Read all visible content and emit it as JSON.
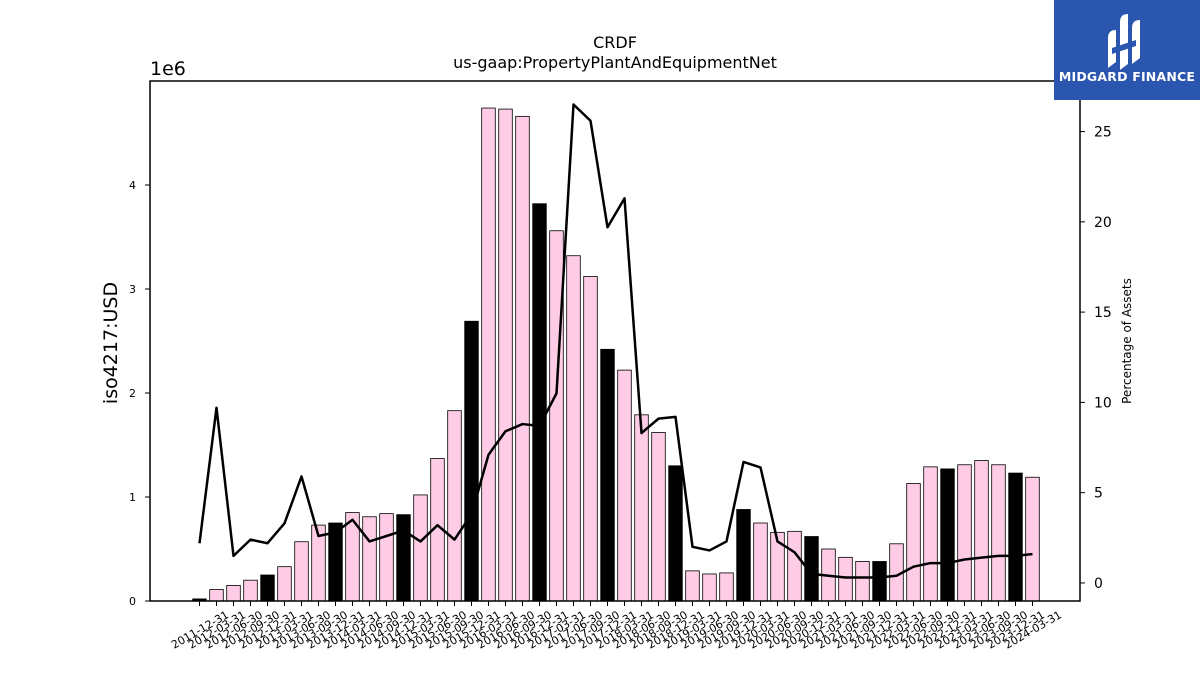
{
  "chart_data": {
    "type": "bar",
    "title": "CRDF",
    "subtitle": "us-gaap:PropertyPlantAndEquipmentNet",
    "ylabel": "iso4217:USD",
    "y_multiplier_label": "1e6",
    "y2label": "Percentage of Assets",
    "ylim": [
      0,
      5.0
    ],
    "y2lim": [
      -1,
      27.8
    ],
    "yticks": [
      "0",
      "1",
      "2",
      "3",
      "4"
    ],
    "y2ticks": [
      "0",
      "5",
      "10",
      "15",
      "20",
      "25"
    ],
    "grid": false,
    "colors": {
      "quarter_bar": "#ffcce6",
      "annual_bar": "#000000",
      "line": "#000000"
    },
    "categories": [
      "2011-12-31",
      "2012-03-31",
      "2012-06-30",
      "2012-09-30",
      "2012-12-31",
      "2013-03-31",
      "2013-06-30",
      "2013-09-30",
      "2013-12-31",
      "2014-03-31",
      "2014-06-30",
      "2014-09-30",
      "2014-12-31",
      "2015-03-31",
      "2015-06-30",
      "2015-09-30",
      "2015-12-31",
      "2016-03-31",
      "2016-06-30",
      "2016-09-30",
      "2016-12-31",
      "2017-03-31",
      "2017-06-30",
      "2017-09-30",
      "2017-12-31",
      "2018-03-31",
      "2018-06-30",
      "2018-09-30",
      "2018-12-31",
      "2019-03-31",
      "2019-06-30",
      "2019-09-30",
      "2019-12-31",
      "2020-03-31",
      "2020-06-30",
      "2020-09-30",
      "2020-12-31",
      "2021-03-31",
      "2021-06-30",
      "2021-09-30",
      "2021-12-31",
      "2022-03-31",
      "2022-06-30",
      "2022-09-30",
      "2022-12-31",
      "2023-03-31",
      "2023-06-30",
      "2023-09-30",
      "2023-12-31",
      "2024-03-31"
    ],
    "bar_values_millions": [
      0.02,
      0.11,
      0.15,
      0.2,
      0.25,
      0.33,
      0.57,
      0.73,
      0.75,
      0.85,
      0.81,
      0.84,
      0.83,
      1.02,
      1.37,
      1.83,
      2.69,
      4.74,
      4.73,
      4.66,
      3.82,
      3.56,
      3.32,
      3.12,
      2.42,
      2.22,
      1.79,
      1.62,
      1.3,
      0.29,
      0.26,
      0.27,
      0.88,
      0.75,
      0.66,
      0.67,
      0.62,
      0.5,
      0.42,
      0.38,
      0.38,
      0.55,
      1.13,
      1.29,
      1.27,
      1.31,
      1.35,
      1.31,
      1.23,
      1.19
    ],
    "is_annual": [
      true,
      false,
      false,
      false,
      true,
      false,
      false,
      false,
      true,
      false,
      false,
      false,
      true,
      false,
      false,
      false,
      true,
      false,
      false,
      false,
      true,
      false,
      false,
      false,
      true,
      false,
      false,
      false,
      true,
      false,
      false,
      false,
      true,
      false,
      false,
      false,
      true,
      false,
      false,
      false,
      true,
      false,
      false,
      false,
      true,
      false,
      false,
      false,
      true,
      false
    ],
    "series": [
      {
        "values": [
          2.2,
          9.7,
          1.5,
          2.4,
          2.2,
          3.3,
          5.9,
          2.6,
          2.8,
          3.5,
          2.3,
          2.6,
          2.9,
          2.3,
          3.2,
          2.4,
          3.8,
          7.1,
          8.4,
          8.8,
          8.7,
          10.5,
          26.5,
          25.6,
          19.7,
          21.3,
          8.3,
          9.1,
          9.2,
          2.0,
          1.8,
          2.3,
          6.7,
          6.4,
          2.3,
          1.7,
          0.5,
          0.4,
          0.3,
          0.3,
          0.3,
          0.4,
          0.9,
          1.1,
          1.1,
          1.3,
          1.4,
          1.5,
          1.5,
          1.6
        ]
      }
    ]
  },
  "logo": {
    "text": "MIDGARD FINANCE"
  }
}
